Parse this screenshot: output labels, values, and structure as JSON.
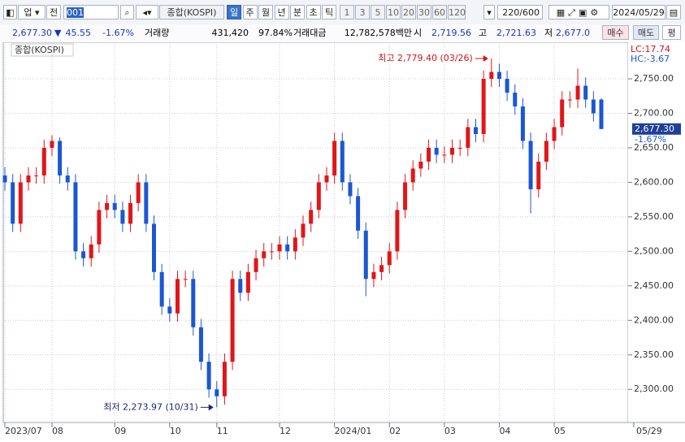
{
  "toolbar": {
    "market": "업",
    "prev": "전",
    "code": "001",
    "name": "종합(KOSPI)",
    "periods": [
      "일",
      "주",
      "월",
      "년",
      "분",
      "초",
      "틱"
    ],
    "intervals": [
      "1",
      "3",
      "5",
      "10",
      "20",
      "30",
      "60",
      "120"
    ],
    "count": "220/600",
    "date": "2024/05/29"
  },
  "quote": {
    "price": "2,677.30",
    "arrow": "▼",
    "change": "45.55",
    "rate": "-1.67%",
    "volume_label": "거래량",
    "volume": "431,420",
    "volume_rate": "97.84%",
    "amount_label": "거래대금",
    "amount": "12,782,578백만",
    "open_label": "시",
    "open": "2,719.56",
    "high_label": "고",
    "high": "2,721.63",
    "low_label": "저",
    "low": "2,677.0",
    "buy": "매수",
    "sell": "매도",
    "eval": "평"
  },
  "chart_data": {
    "type": "candlestick",
    "title": "종합(KOSPI)",
    "categories": [
      "2023/07",
      null,
      null,
      null,
      null,
      null,
      "08",
      null,
      null,
      null,
      null,
      null,
      null,
      null,
      "09",
      null,
      null,
      null,
      null,
      null,
      null,
      "10",
      null,
      null,
      null,
      null,
      null,
      "11",
      null,
      null,
      null,
      null,
      null,
      null,
      null,
      "12",
      null,
      null,
      null,
      null,
      null,
      null,
      "2024/01",
      null,
      null,
      null,
      null,
      null,
      null,
      "02",
      null,
      null,
      null,
      null,
      null,
      null,
      "03",
      null,
      null,
      null,
      null,
      null,
      null,
      "04",
      null,
      null,
      null,
      null,
      null,
      null,
      "05",
      null,
      null,
      null,
      null,
      null,
      null
    ],
    "x_end_label": "05/29",
    "open": [
      2610,
      2600,
      2540,
      2600,
      2610,
      2610,
      2650,
      2660,
      2610,
      2600,
      2500,
      2490,
      2510,
      2560,
      2570,
      2560,
      2540,
      2570,
      2600,
      2540,
      2470,
      2420,
      2410,
      2460,
      2460,
      2390,
      2340,
      2300,
      2290,
      2340,
      2460,
      2440,
      2470,
      2490,
      2500,
      2500,
      2510,
      2500,
      2520,
      2540,
      2560,
      2600,
      2610,
      2660,
      2600,
      2580,
      2530,
      2460,
      2470,
      2480,
      2500,
      2560,
      2600,
      2620,
      2630,
      2650,
      2640,
      2640,
      2650,
      2650,
      2680,
      2670,
      2750,
      2760,
      2750,
      2730,
      2710,
      2660,
      2590,
      2630,
      2660,
      2680,
      2720,
      2720,
      2740,
      2720,
      2720
    ],
    "high": [
      2622,
      2612,
      2612,
      2622,
      2622,
      2662,
      2668,
      2665,
      2622,
      2612,
      2512,
      2522,
      2572,
      2582,
      2582,
      2572,
      2582,
      2612,
      2612,
      2552,
      2482,
      2432,
      2472,
      2472,
      2472,
      2402,
      2352,
      2312,
      2352,
      2472,
      2472,
      2482,
      2502,
      2512,
      2512,
      2522,
      2522,
      2532,
      2552,
      2572,
      2612,
      2622,
      2672,
      2672,
      2612,
      2592,
      2542,
      2482,
      2492,
      2512,
      2572,
      2612,
      2632,
      2642,
      2662,
      2662,
      2652,
      2662,
      2662,
      2692,
      2692,
      2762,
      2779.4,
      2772,
      2762,
      2742,
      2722,
      2672,
      2642,
      2672,
      2692,
      2732,
      2732,
      2765,
      2752,
      2732,
      2721.63
    ],
    "low": [
      2588,
      2528,
      2528,
      2588,
      2598,
      2598,
      2638,
      2598,
      2588,
      2488,
      2478,
      2478,
      2498,
      2548,
      2548,
      2528,
      2528,
      2558,
      2528,
      2458,
      2408,
      2398,
      2398,
      2448,
      2378,
      2328,
      2288,
      2273.97,
      2278,
      2328,
      2428,
      2428,
      2458,
      2478,
      2488,
      2488,
      2488,
      2488,
      2508,
      2528,
      2548,
      2588,
      2598,
      2588,
      2568,
      2518,
      2435,
      2448,
      2458,
      2468,
      2488,
      2548,
      2588,
      2608,
      2618,
      2628,
      2628,
      2628,
      2638,
      2638,
      2658,
      2658,
      2738,
      2738,
      2718,
      2698,
      2648,
      2555,
      2578,
      2618,
      2648,
      2668,
      2708,
      2708,
      2708,
      2688,
      2677.0
    ],
    "close": [
      2600,
      2540,
      2600,
      2610,
      2610,
      2650,
      2660,
      2610,
      2600,
      2500,
      2490,
      2510,
      2560,
      2570,
      2560,
      2540,
      2570,
      2600,
      2540,
      2470,
      2420,
      2410,
      2460,
      2460,
      2390,
      2340,
      2300,
      2290,
      2340,
      2460,
      2440,
      2470,
      2490,
      2500,
      2500,
      2510,
      2500,
      2520,
      2540,
      2560,
      2600,
      2610,
      2660,
      2600,
      2580,
      2530,
      2460,
      2470,
      2480,
      2500,
      2560,
      2600,
      2620,
      2630,
      2650,
      2640,
      2640,
      2650,
      2650,
      2680,
      2670,
      2750,
      2760,
      2750,
      2730,
      2710,
      2660,
      2590,
      2630,
      2660,
      2680,
      2720,
      2720,
      2740,
      2720,
      2700,
      2677.3
    ],
    "up_color": "#e0161b",
    "down_color": "#1c57d0",
    "ylim": [
      2252,
      2803
    ],
    "yticks": [
      {
        "value": 2300,
        "label": "2,300.00"
      },
      {
        "value": 2350,
        "label": "2,350.00"
      },
      {
        "value": 2400,
        "label": "2,400.00"
      },
      {
        "value": 2450,
        "label": "2,450.00"
      },
      {
        "value": 2500,
        "label": "2,500.00"
      },
      {
        "value": 2550,
        "label": "2,550.00"
      },
      {
        "value": 2600,
        "label": "2,600.00"
      },
      {
        "value": 2650,
        "label": "2,650.00"
      },
      {
        "value": 2700,
        "label": "2,700.00"
      },
      {
        "value": 2750,
        "label": "2,750.00"
      }
    ],
    "grid": true,
    "high_annotation": {
      "text": "최고 2,779.40 (03/26)",
      "color": "#d0141a"
    },
    "low_annotation": {
      "text": "최저 2,273.97 (10/31)",
      "color": "#1a237e"
    },
    "lc": "LC:17.74",
    "hc": "HC:-3.67",
    "last_price": {
      "value": 2677.3,
      "label": "2,677.30"
    },
    "last_rate": "-1.67%"
  }
}
